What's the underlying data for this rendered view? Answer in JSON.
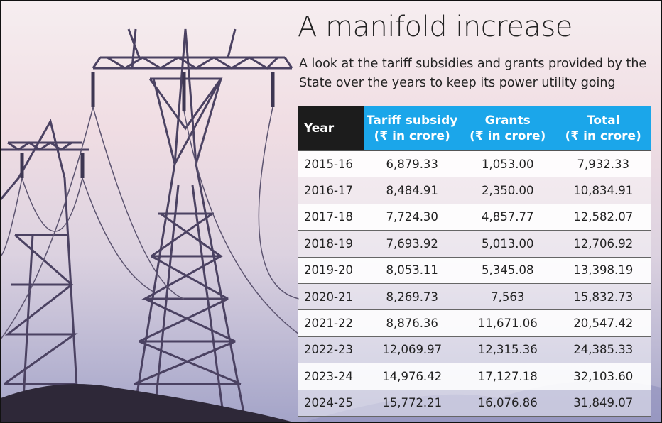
{
  "header": {
    "title": "A manifold increase",
    "subtitle": "A look at the tariff subsidies and grants provided by the State over the years to keep its power utility going"
  },
  "table": {
    "columns": [
      [
        "Year"
      ],
      [
        "Tariff subsidy",
        "(₹ in crore)"
      ],
      [
        "Grants",
        "(₹ in crore)"
      ],
      [
        "Total",
        "(₹ in crore)"
      ]
    ],
    "rows": [
      [
        "2015-16",
        "6,879.33",
        "1,053.00",
        "7,932.33"
      ],
      [
        "2016-17",
        "8,484.91",
        "2,350.00",
        "10,834.91"
      ],
      [
        "2017-18",
        "7,724.30",
        "4,857.77",
        "12,582.07"
      ],
      [
        "2018-19",
        "7,693.92",
        "5,013.00",
        "12,706.92"
      ],
      [
        "2019-20",
        "8,053.11",
        "5,345.08",
        "13,398.19"
      ],
      [
        "2020-21",
        "8,269.73",
        "7,563",
        "15,832.73"
      ],
      [
        "2021-22",
        "8,876.36",
        "11,671.06",
        "20,547.42"
      ],
      [
        "2022-23",
        "12,069.97",
        "12,315.36",
        "24,385.33"
      ],
      [
        "2023-24",
        "14,976.42",
        "17,127.18",
        "32,103.60"
      ],
      [
        "2024-25",
        "15,772.21",
        "16,076.86",
        "31,849.07"
      ]
    ]
  }
}
